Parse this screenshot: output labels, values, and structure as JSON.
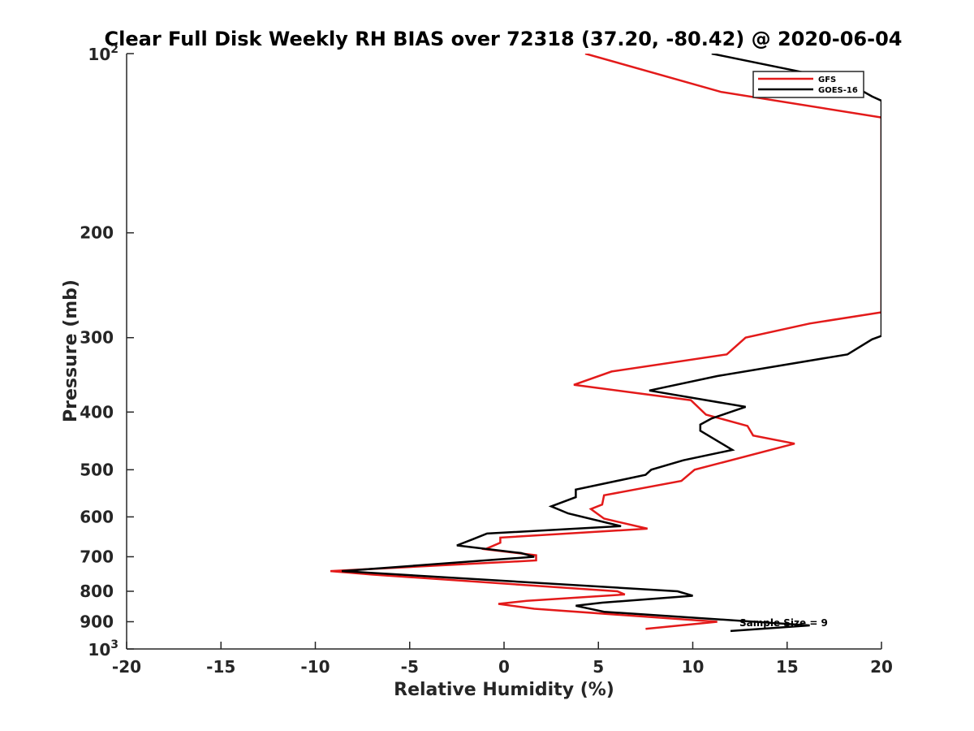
{
  "chart_data": {
    "type": "line",
    "title": "Clear Full Disk Weekly RH BIAS over 72318 (37.20, -80.42) @ 2020-06-04",
    "xlabel": "Relative Humidity (%)",
    "ylabel": "Pressure (mb)",
    "xlim": [
      -20,
      20
    ],
    "ylim": [
      100,
      1000
    ],
    "y_scale": "log",
    "y_reversed": true,
    "x_ticks": [
      {
        "value": -20,
        "label": "-20"
      },
      {
        "value": -15,
        "label": "-15"
      },
      {
        "value": -10,
        "label": "-10"
      },
      {
        "value": -5,
        "label": "-5"
      },
      {
        "value": 0,
        "label": "0"
      },
      {
        "value": 5,
        "label": "5"
      },
      {
        "value": 10,
        "label": "10"
      },
      {
        "value": 15,
        "label": "15"
      },
      {
        "value": 20,
        "label": "20"
      }
    ],
    "y_ticks": [
      {
        "value": 100,
        "base": "10",
        "exp": "2"
      },
      {
        "value": 200,
        "base": "200",
        "exp": ""
      },
      {
        "value": 300,
        "base": "300",
        "exp": ""
      },
      {
        "value": 400,
        "base": "400",
        "exp": ""
      },
      {
        "value": 500,
        "base": "500",
        "exp": ""
      },
      {
        "value": 600,
        "base": "600",
        "exp": ""
      },
      {
        "value": 700,
        "base": "700",
        "exp": ""
      },
      {
        "value": 800,
        "base": "800",
        "exp": ""
      },
      {
        "value": 900,
        "base": "900",
        "exp": ""
      },
      {
        "value": 1000,
        "base": "10",
        "exp": "3"
      }
    ],
    "grid": false,
    "legend_position": "top-right",
    "annotation": "Sample Size = 9",
    "series": [
      {
        "name": "GFS",
        "color": "#e31a1a",
        "points": [
          [
            4.3,
            100
          ],
          [
            11.5,
            116
          ],
          [
            20.0,
            128
          ],
          [
            20.0,
            272
          ],
          [
            16.2,
            284
          ],
          [
            12.8,
            300
          ],
          [
            11.8,
            320
          ],
          [
            5.7,
            342
          ],
          [
            3.7,
            360
          ],
          [
            9.9,
            382
          ],
          [
            10.7,
            404
          ],
          [
            12.9,
            422
          ],
          [
            13.2,
            438
          ],
          [
            15.4,
            452
          ],
          [
            10.1,
            500
          ],
          [
            9.4,
            522
          ],
          [
            5.3,
            552
          ],
          [
            5.2,
            572
          ],
          [
            4.6,
            582
          ],
          [
            5.3,
            604
          ],
          [
            7.6,
            628
          ],
          [
            -0.2,
            650
          ],
          [
            -0.2,
            663
          ],
          [
            -1.0,
            680
          ],
          [
            1.7,
            696
          ],
          [
            1.7,
            710
          ],
          [
            -9.2,
            740
          ],
          [
            -7.0,
            750
          ],
          [
            6.0,
            800
          ],
          [
            6.4,
            810
          ],
          [
            1.2,
            830
          ],
          [
            -0.3,
            840
          ],
          [
            1.6,
            856
          ],
          [
            11.3,
            900
          ],
          [
            7.5,
            925
          ]
        ]
      },
      {
        "name": "GOES-16",
        "color": "#000000",
        "points": [
          [
            11.0,
            100
          ],
          [
            18.0,
            111
          ],
          [
            19.5,
            118
          ],
          [
            20.0,
            120
          ],
          [
            20.0,
            298
          ],
          [
            19.5,
            302
          ],
          [
            18.2,
            320
          ],
          [
            11.3,
            348
          ],
          [
            7.7,
            368
          ],
          [
            12.8,
            392
          ],
          [
            11.0,
            410
          ],
          [
            10.4,
            420
          ],
          [
            10.4,
            430
          ],
          [
            12.1,
            463
          ],
          [
            9.5,
            482
          ],
          [
            7.8,
            500
          ],
          [
            7.5,
            510
          ],
          [
            3.8,
            540
          ],
          [
            3.8,
            556
          ],
          [
            2.5,
            576
          ],
          [
            3.4,
            592
          ],
          [
            6.2,
            622
          ],
          [
            -0.9,
            640
          ],
          [
            -1.7,
            655
          ],
          [
            -2.5,
            670
          ],
          [
            0.9,
            690
          ],
          [
            1.6,
            700
          ],
          [
            -8.6,
            740
          ],
          [
            9.2,
            800
          ],
          [
            10.0,
            814
          ],
          [
            5.2,
            836
          ],
          [
            3.8,
            846
          ],
          [
            5.3,
            866
          ],
          [
            16.2,
            913
          ],
          [
            12.0,
            933
          ]
        ]
      }
    ]
  }
}
